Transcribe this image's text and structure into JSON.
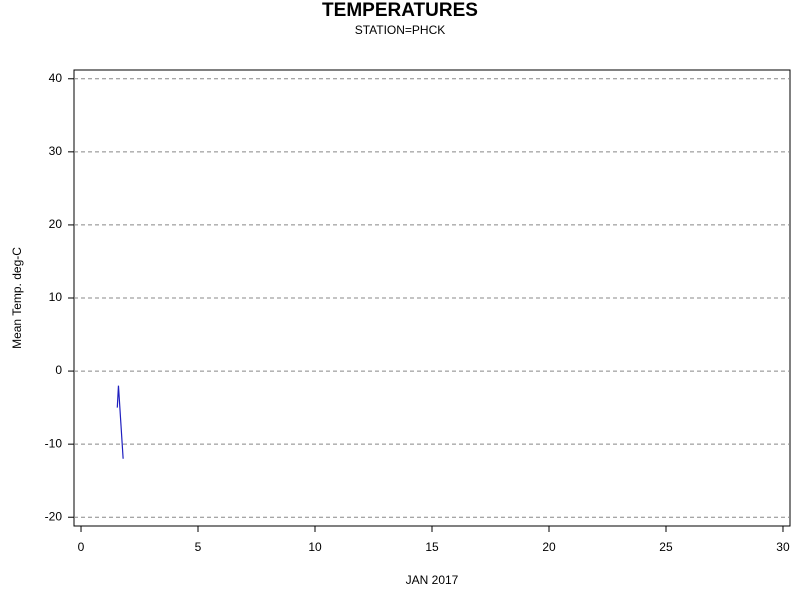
{
  "chart_data": {
    "type": "line",
    "title": "TEMPERATURES",
    "subtitle": "STATION=PHCK",
    "x_label": "JAN 2017",
    "y_label": "Mean Temp. deg-C",
    "x": [
      1.55,
      1.6,
      1.7,
      1.8
    ],
    "series": [
      {
        "name": "Mean Temp",
        "color": "#1f1fbf",
        "values": [
          -5,
          -2,
          -7,
          -12
        ]
      }
    ],
    "xlim": [
      -0.3,
      30.3
    ],
    "xticks": [
      0,
      5,
      10,
      15,
      20,
      25,
      30
    ],
    "ylim": [
      -21.2,
      41.2
    ],
    "yticks": [
      -20,
      -10,
      0,
      10,
      20,
      30,
      40
    ],
    "grid": true
  }
}
